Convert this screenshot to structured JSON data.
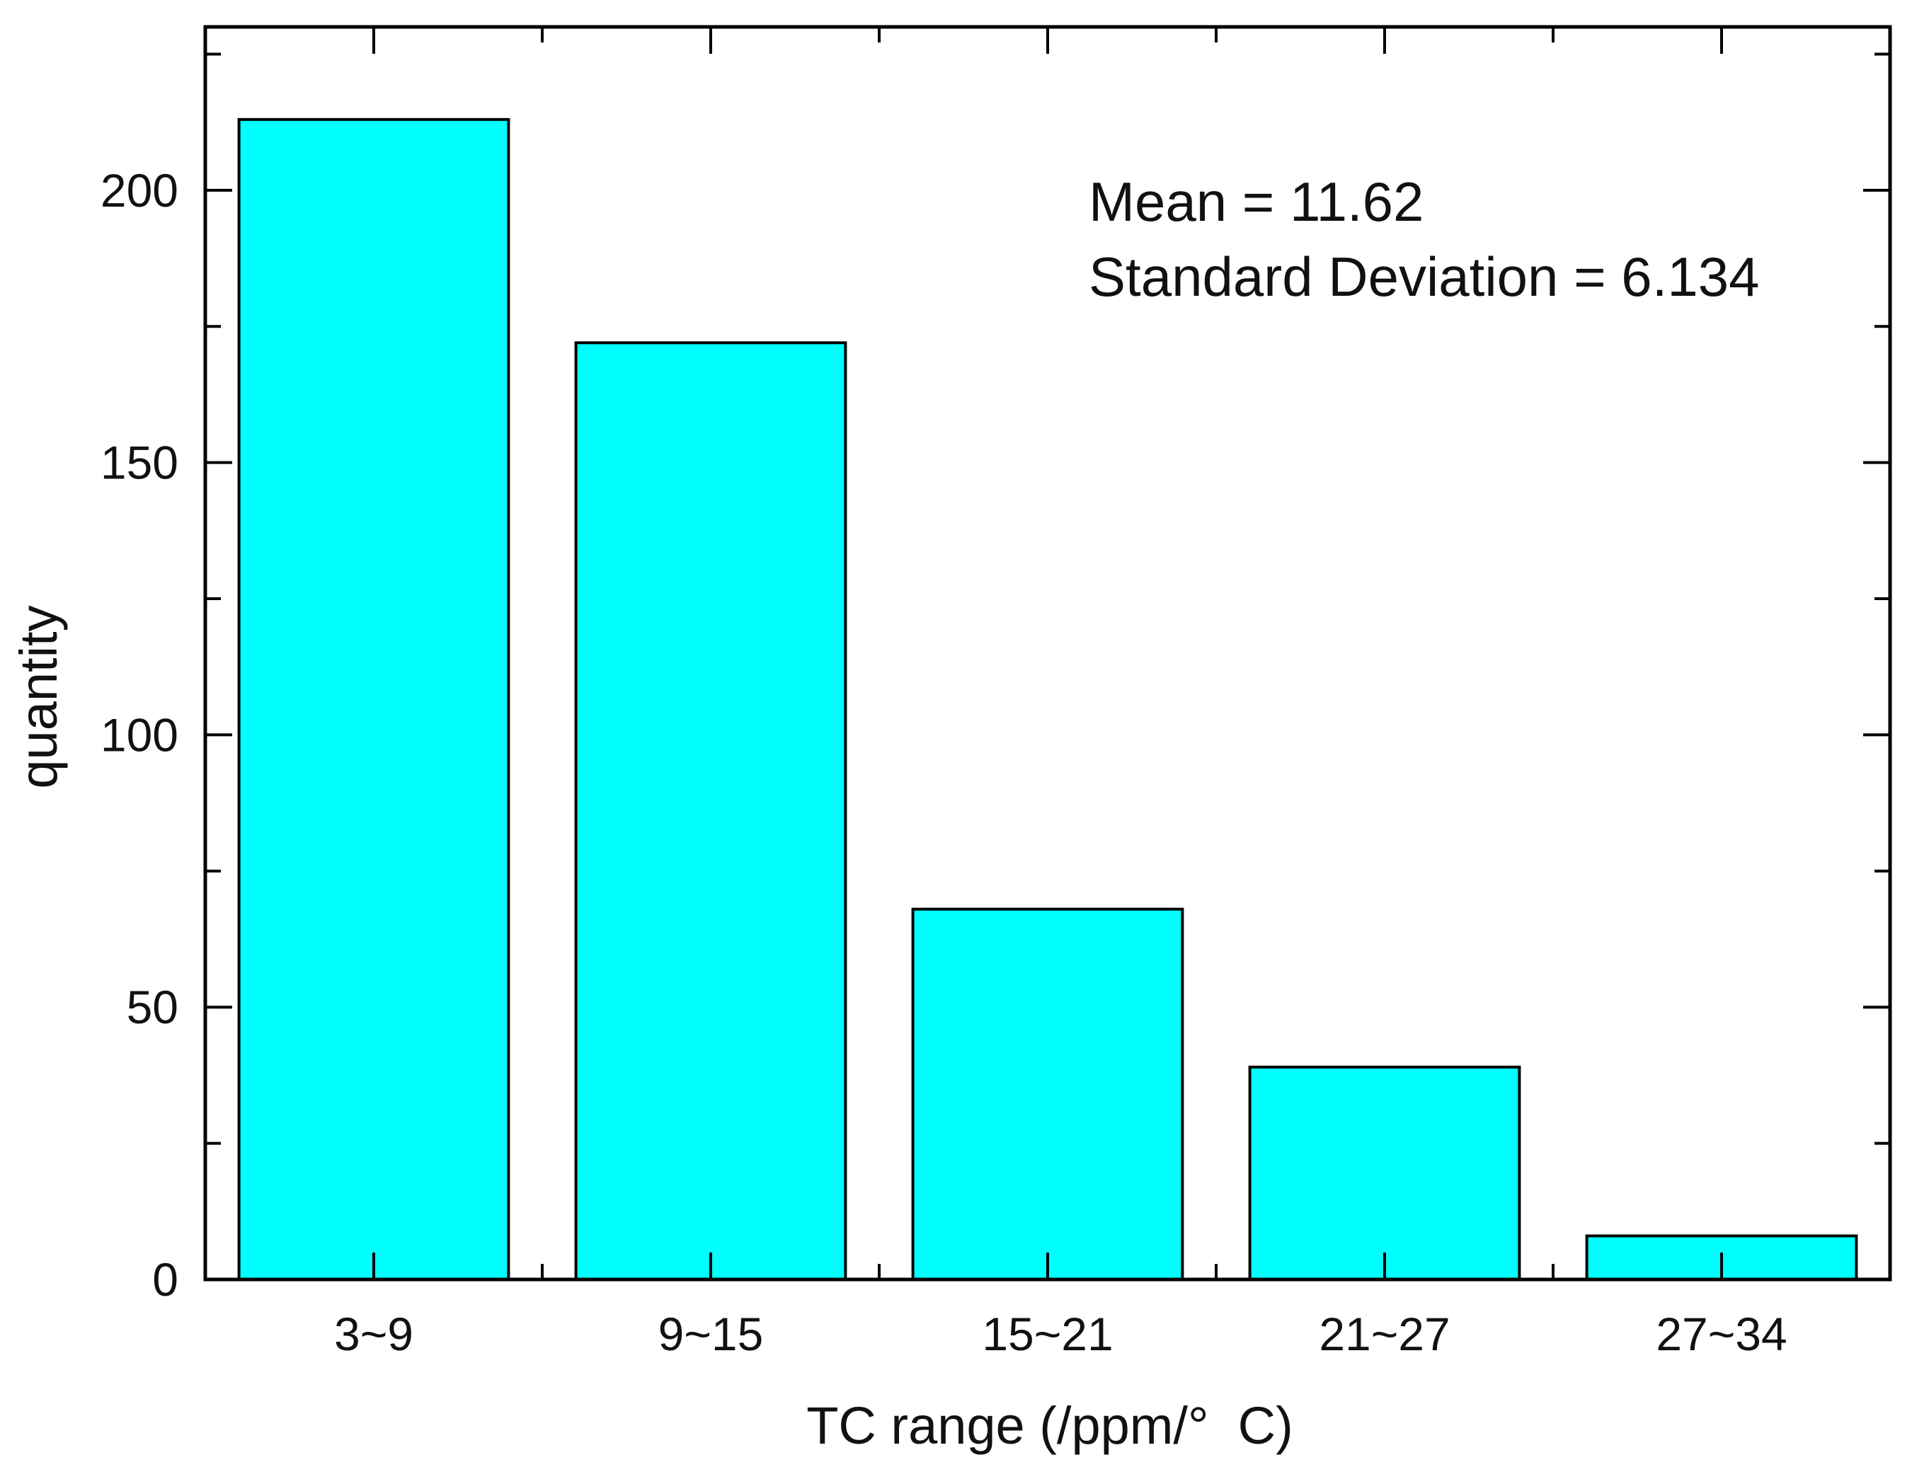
{
  "chart_data": {
    "type": "bar",
    "title": "",
    "xlabel": "TC range (/ppm/°  C)",
    "ylabel": "quantity",
    "categories": [
      "3~9",
      "9~15",
      "15~21",
      "21~27",
      "27~34"
    ],
    "values": [
      213,
      172,
      68,
      39,
      8
    ],
    "ylim": [
      0,
      230
    ],
    "y_ticks": [
      0,
      50,
      100,
      150,
      200
    ],
    "y_minor_ticks": [
      25,
      75,
      125,
      175,
      225
    ],
    "bar_color": "#00FFFF",
    "edge_color": "#000000",
    "grid": false,
    "annotations": [
      "Mean = 11.62",
      "Standard Deviation = 6.134"
    ]
  }
}
